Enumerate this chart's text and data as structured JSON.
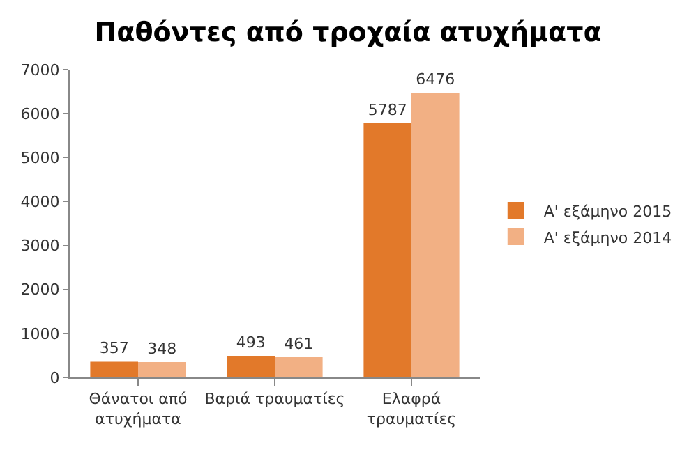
{
  "chart_data": {
    "type": "bar",
    "title": "Παθόντες από τροχαία ατυχήματα",
    "categories": [
      "Θάνατοι από ατυχήματα",
      "Βαριά τραυματίες",
      "Ελαφρά τραυματίες"
    ],
    "series": [
      {
        "name": "Α' εξάμηνο 2015",
        "color": "#e2792a",
        "values": [
          357,
          493,
          5787
        ]
      },
      {
        "name": "Α' εξάμηνο 2014",
        "color": "#f2b084",
        "values": [
          348,
          461,
          6476
        ]
      }
    ],
    "ylim": [
      0,
      7000
    ],
    "yticks": [
      0,
      1000,
      2000,
      3000,
      4000,
      5000,
      6000,
      7000
    ],
    "grid": false,
    "legend": "right",
    "data_labels": true
  }
}
